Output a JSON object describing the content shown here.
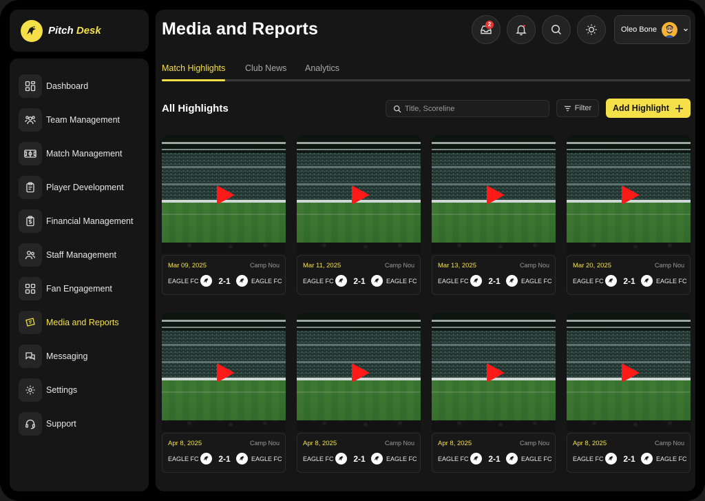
{
  "brand": {
    "name_a": "Pitch",
    "name_b": "Desk"
  },
  "sidebar": {
    "items": [
      {
        "label": "Dashboard",
        "icon": "dashboard-icon"
      },
      {
        "label": "Team Management",
        "icon": "team-icon"
      },
      {
        "label": "Match Management",
        "icon": "pitch-icon"
      },
      {
        "label": "Player Development",
        "icon": "clipboard-icon"
      },
      {
        "label": "Financial Management",
        "icon": "dollar-doc-icon"
      },
      {
        "label": "Staff Management",
        "icon": "users-icon"
      },
      {
        "label": "Fan Engagement",
        "icon": "grid-icon"
      },
      {
        "label": "Media and Reports",
        "icon": "ticket-icon",
        "active": true
      },
      {
        "label": "Messaging",
        "icon": "chat-icon"
      },
      {
        "label": "Settings",
        "icon": "gear-icon"
      },
      {
        "label": "Support",
        "icon": "headset-icon"
      }
    ]
  },
  "header": {
    "title": "Media and Reports",
    "notification_badge": "2",
    "user_name": "Oleo Bone"
  },
  "tabs": [
    {
      "label": "Match Highlights",
      "active": true
    },
    {
      "label": "Club News"
    },
    {
      "label": "Analytics"
    }
  ],
  "section": {
    "title": "All Highlights",
    "search_placeholder": "Title, Scoreline",
    "filter_label": "Filter",
    "add_label": "Add Highlight"
  },
  "highlights": [
    {
      "date": "Mar 09, 2025",
      "venue": "Camp Nou",
      "home": "EAGLE FC",
      "score": "2-1",
      "away": "EAGLE FC"
    },
    {
      "date": "Mar 11, 2025",
      "venue": "Camp Nou",
      "home": "EAGLE FC",
      "score": "2-1",
      "away": "EAGLE FC"
    },
    {
      "date": "Mar 13, 2025",
      "venue": "Camp Nou",
      "home": "EAGLE FC",
      "score": "2-1",
      "away": "EAGLE FC"
    },
    {
      "date": "Mar 20, 2025",
      "venue": "Camp Nou",
      "home": "EAGLE FC",
      "score": "2-1",
      "away": "EAGLE FC"
    },
    {
      "date": "Apr 8, 2025",
      "venue": "Camp Nou",
      "home": "EAGLE FC",
      "score": "2-1",
      "away": "EAGLE FC"
    },
    {
      "date": "Apr 8, 2025",
      "venue": "Camp Nou",
      "home": "EAGLE FC",
      "score": "2-1",
      "away": "EAGLE FC"
    },
    {
      "date": "Apr 8, 2025",
      "venue": "Camp Nou",
      "home": "EAGLE FC",
      "score": "2-1",
      "away": "EAGLE FC"
    },
    {
      "date": "Apr 8, 2025",
      "venue": "Camp Nou",
      "home": "EAGLE FC",
      "score": "2-1",
      "away": "EAGLE FC"
    }
  ],
  "colors": {
    "accent": "#f5e04a",
    "play": "#ff1a1a",
    "bg": "#161616"
  }
}
